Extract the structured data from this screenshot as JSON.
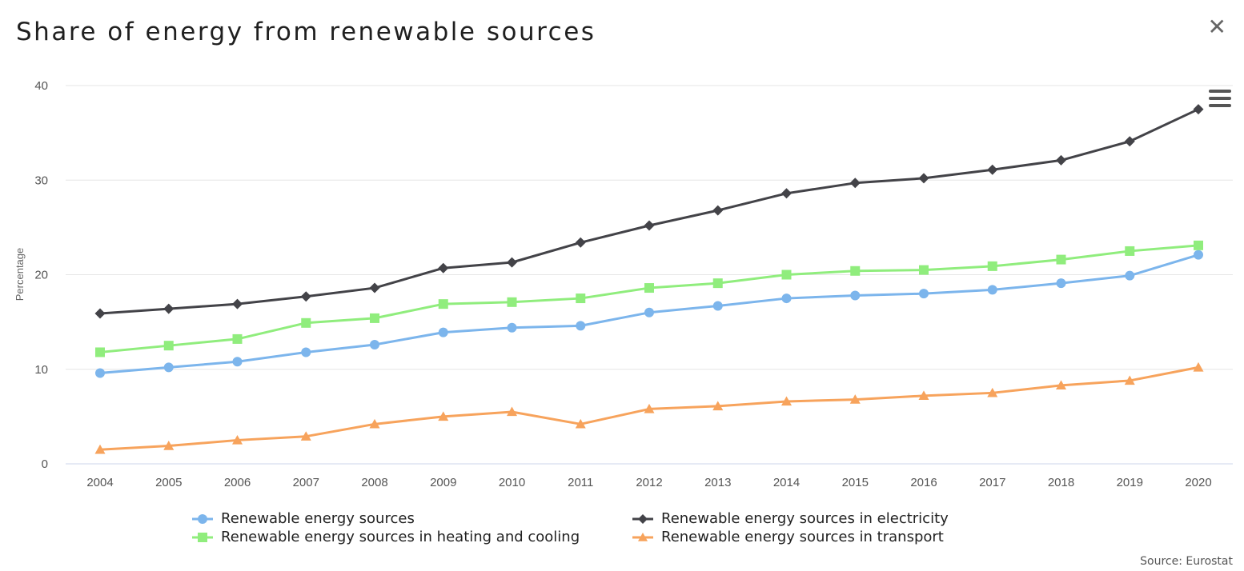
{
  "title": "Share of energy from renewable sources",
  "source": "Source: Eurostat",
  "chart_data": {
    "type": "line",
    "title": "Share of energy from renewable sources",
    "xlabel": "",
    "ylabel": "Percentage",
    "ylim": [
      0,
      40
    ],
    "yticks": [
      0,
      10,
      20,
      30,
      40
    ],
    "grid": true,
    "categories": [
      "2004",
      "2005",
      "2006",
      "2007",
      "2008",
      "2009",
      "2010",
      "2011",
      "2012",
      "2013",
      "2014",
      "2015",
      "2016",
      "2017",
      "2018",
      "2019",
      "2020"
    ],
    "series": [
      {
        "name": "Renewable energy sources",
        "color": "#7cb5ec",
        "marker": "circle",
        "values": [
          9.6,
          10.2,
          10.8,
          11.8,
          12.6,
          13.9,
          14.4,
          14.6,
          16.0,
          16.7,
          17.5,
          17.8,
          18.0,
          18.4,
          19.1,
          19.9,
          22.1
        ]
      },
      {
        "name": "Renewable energy sources in electricity",
        "color": "#434348",
        "marker": "diamond",
        "values": [
          15.9,
          16.4,
          16.9,
          17.7,
          18.6,
          20.7,
          21.3,
          23.4,
          25.2,
          26.8,
          28.6,
          29.7,
          30.2,
          31.1,
          32.1,
          34.1,
          37.5
        ]
      },
      {
        "name": "Renewable energy sources in heating and cooling",
        "color": "#90ed7d",
        "marker": "square",
        "values": [
          11.8,
          12.5,
          13.2,
          14.9,
          15.4,
          16.9,
          17.1,
          17.5,
          18.6,
          19.1,
          20.0,
          20.4,
          20.5,
          20.9,
          21.6,
          22.5,
          23.1
        ]
      },
      {
        "name": "Renewable energy sources in transport",
        "color": "#f7a35c",
        "marker": "triangle",
        "values": [
          1.5,
          1.9,
          2.5,
          2.9,
          4.2,
          5.0,
          5.5,
          4.2,
          5.8,
          6.1,
          6.6,
          6.8,
          7.2,
          7.5,
          8.3,
          8.8,
          10.2
        ]
      }
    ],
    "legend": "bottom-center"
  }
}
